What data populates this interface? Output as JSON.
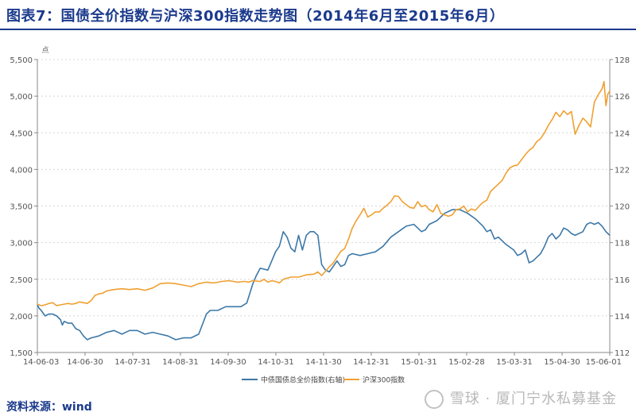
{
  "title": "图表7：国债全价指数与沪深300指数走势图（2014年6月至2015年6月）",
  "source": "资料来源：wind",
  "watermark": "雪球 · 厦门宁水私募基金",
  "chart_data": {
    "type": "line",
    "left_axis": {
      "unit": "点",
      "range": [
        1500,
        5500
      ],
      "ticks": [
        "1,500",
        "2,000",
        "2,500",
        "3,000",
        "3,500",
        "4,000",
        "4,500",
        "5,000",
        "5,500"
      ]
    },
    "right_axis": {
      "range": [
        112,
        128
      ],
      "ticks": [
        "112",
        "114",
        "116",
        "118",
        "120",
        "122",
        "124",
        "126",
        "128"
      ]
    },
    "x_ticks": [
      "14-06-03",
      "14-06-30",
      "14-07-31",
      "14-08-31",
      "14-09-30",
      "14-10-31",
      "14-11-30",
      "14-12-31",
      "15-01-31",
      "15-02-28",
      "15-03-31",
      "15-04-30",
      "15-06-01"
    ],
    "grid": "horizontal-dashed",
    "legend_position": "bottom",
    "colors": {
      "csi300": "#f0a030",
      "bond": "#3c78a8"
    },
    "series": [
      {
        "name": "中债国债总全价指数(右轴)",
        "axis": "right",
        "values": [
          [
            0,
            114.6
          ],
          [
            0.5,
            114.4
          ],
          [
            1,
            114.3
          ],
          [
            2,
            114.0
          ],
          [
            3,
            114.1
          ],
          [
            4,
            114.1
          ],
          [
            5,
            114.0
          ],
          [
            6,
            113.8
          ],
          [
            6.5,
            113.5
          ],
          [
            7,
            113.7
          ],
          [
            8,
            113.6
          ],
          [
            9,
            113.6
          ],
          [
            10,
            113.3
          ],
          [
            11,
            113.2
          ],
          [
            12,
            112.9
          ],
          [
            13,
            112.7
          ],
          [
            14,
            112.8
          ],
          [
            16,
            112.9
          ],
          [
            18,
            113.1
          ],
          [
            20,
            113.2
          ],
          [
            22,
            113.0
          ],
          [
            24,
            113.2
          ],
          [
            26,
            113.2
          ],
          [
            28,
            113.0
          ],
          [
            30,
            113.1
          ],
          [
            32,
            113.0
          ],
          [
            34,
            112.9
          ],
          [
            36,
            112.7
          ],
          [
            38,
            112.8
          ],
          [
            40,
            112.8
          ],
          [
            42,
            113.0
          ],
          [
            44,
            114.1
          ],
          [
            45,
            114.3
          ],
          [
            47,
            114.3
          ],
          [
            49,
            114.5
          ],
          [
            51,
            114.5
          ],
          [
            53,
            114.5
          ],
          [
            54.5,
            114.7
          ],
          [
            56,
            115.7
          ],
          [
            57,
            116.2
          ],
          [
            58,
            116.6
          ],
          [
            60,
            116.5
          ],
          [
            61,
            117.0
          ],
          [
            62,
            117.5
          ],
          [
            63,
            117.8
          ],
          [
            64,
            118.6
          ],
          [
            65,
            118.3
          ],
          [
            66,
            117.7
          ],
          [
            67,
            117.5
          ],
          [
            68,
            118.4
          ],
          [
            69,
            117.6
          ],
          [
            70,
            118.4
          ],
          [
            71,
            118.6
          ],
          [
            72,
            118.6
          ],
          [
            73,
            118.4
          ],
          [
            74,
            116.8
          ],
          [
            75,
            116.5
          ],
          [
            76,
            116.4
          ],
          [
            77,
            116.7
          ],
          [
            78,
            117.0
          ],
          [
            79,
            116.7
          ],
          [
            80,
            116.8
          ],
          [
            81,
            117.3
          ],
          [
            82,
            117.4
          ],
          [
            84,
            117.3
          ],
          [
            86,
            117.4
          ],
          [
            88,
            117.5
          ],
          [
            90,
            117.8
          ],
          [
            92,
            118.3
          ],
          [
            94,
            118.6
          ],
          [
            96,
            118.9
          ],
          [
            98,
            119.0
          ],
          [
            100,
            118.6
          ],
          [
            101,
            118.7
          ],
          [
            102,
            119.0
          ],
          [
            104,
            119.2
          ],
          [
            106,
            119.6
          ],
          [
            108,
            119.8
          ],
          [
            110,
            119.8
          ],
          [
            112,
            119.6
          ],
          [
            114,
            119.3
          ],
          [
            116,
            118.9
          ],
          [
            117,
            118.6
          ],
          [
            118,
            118.7
          ],
          [
            119,
            118.2
          ],
          [
            120,
            118.3
          ],
          [
            122,
            117.9
          ],
          [
            124,
            117.6
          ],
          [
            125,
            117.3
          ],
          [
            126,
            117.4
          ],
          [
            127,
            117.6
          ],
          [
            128,
            116.9
          ],
          [
            129,
            117.0
          ],
          [
            130,
            117.2
          ],
          [
            131,
            117.4
          ],
          [
            132,
            117.8
          ],
          [
            133,
            118.3
          ],
          [
            134,
            118.5
          ],
          [
            135,
            118.2
          ],
          [
            136,
            118.4
          ],
          [
            137,
            118.8
          ],
          [
            138,
            118.7
          ],
          [
            139,
            118.5
          ],
          [
            140,
            118.4
          ],
          [
            142,
            118.6
          ],
          [
            143,
            119.0
          ],
          [
            144,
            119.1
          ],
          [
            145,
            119.0
          ],
          [
            146,
            119.1
          ],
          [
            147,
            118.9
          ],
          [
            148,
            118.6
          ],
          [
            149,
            118.4
          ]
        ]
      },
      {
        "name": "沪深300指数",
        "axis": "left",
        "values": [
          [
            0,
            2160
          ],
          [
            1,
            2140
          ],
          [
            2,
            2150
          ],
          [
            3,
            2170
          ],
          [
            4,
            2180
          ],
          [
            5,
            2140
          ],
          [
            6,
            2150
          ],
          [
            7,
            2160
          ],
          [
            8,
            2170
          ],
          [
            9,
            2160
          ],
          [
            10,
            2170
          ],
          [
            11,
            2190
          ],
          [
            12,
            2180
          ],
          [
            13,
            2170
          ],
          [
            14,
            2210
          ],
          [
            15,
            2280
          ],
          [
            16,
            2300
          ],
          [
            17,
            2310
          ],
          [
            18,
            2340
          ],
          [
            20,
            2360
          ],
          [
            22,
            2370
          ],
          [
            24,
            2360
          ],
          [
            26,
            2370
          ],
          [
            28,
            2350
          ],
          [
            30,
            2380
          ],
          [
            32,
            2440
          ],
          [
            34,
            2450
          ],
          [
            36,
            2440
          ],
          [
            38,
            2420
          ],
          [
            40,
            2400
          ],
          [
            42,
            2440
          ],
          [
            44,
            2460
          ],
          [
            46,
            2450
          ],
          [
            48,
            2470
          ],
          [
            50,
            2480
          ],
          [
            52,
            2460
          ],
          [
            54,
            2470
          ],
          [
            55,
            2460
          ],
          [
            56,
            2480
          ],
          [
            58,
            2470
          ],
          [
            59,
            2500
          ],
          [
            60,
            2460
          ],
          [
            61,
            2480
          ],
          [
            62,
            2470
          ],
          [
            63,
            2450
          ],
          [
            64,
            2500
          ],
          [
            66,
            2530
          ],
          [
            68,
            2530
          ],
          [
            70,
            2560
          ],
          [
            72,
            2570
          ],
          [
            73,
            2600
          ],
          [
            74,
            2550
          ],
          [
            75,
            2610
          ],
          [
            76,
            2670
          ],
          [
            77,
            2720
          ],
          [
            78,
            2800
          ],
          [
            79,
            2880
          ],
          [
            80,
            2920
          ],
          [
            81,
            3050
          ],
          [
            82,
            3200
          ],
          [
            83,
            3300
          ],
          [
            84,
            3380
          ],
          [
            85,
            3470
          ],
          [
            86,
            3350
          ],
          [
            87,
            3380
          ],
          [
            88,
            3420
          ],
          [
            89,
            3420
          ],
          [
            90,
            3470
          ],
          [
            91,
            3510
          ],
          [
            92,
            3560
          ],
          [
            93,
            3640
          ],
          [
            94,
            3630
          ],
          [
            95,
            3560
          ],
          [
            96,
            3520
          ],
          [
            97,
            3480
          ],
          [
            98,
            3470
          ],
          [
            99,
            3560
          ],
          [
            100,
            3490
          ],
          [
            101,
            3510
          ],
          [
            102,
            3450
          ],
          [
            103,
            3420
          ],
          [
            104,
            3520
          ],
          [
            105,
            3400
          ],
          [
            106,
            3380
          ],
          [
            107,
            3360
          ],
          [
            108,
            3380
          ],
          [
            109,
            3450
          ],
          [
            110,
            3460
          ],
          [
            111,
            3500
          ],
          [
            112,
            3420
          ],
          [
            113,
            3460
          ],
          [
            114,
            3440
          ],
          [
            115,
            3500
          ],
          [
            116,
            3550
          ],
          [
            117,
            3580
          ],
          [
            118,
            3700
          ],
          [
            119,
            3750
          ],
          [
            120,
            3800
          ],
          [
            121,
            3850
          ],
          [
            122,
            3950
          ],
          [
            123,
            4020
          ],
          [
            124,
            4050
          ],
          [
            125,
            4060
          ],
          [
            126,
            4130
          ],
          [
            127,
            4200
          ],
          [
            128,
            4260
          ],
          [
            129,
            4300
          ],
          [
            130,
            4380
          ],
          [
            131,
            4420
          ],
          [
            132,
            4500
          ],
          [
            133,
            4600
          ],
          [
            134,
            4680
          ],
          [
            135,
            4780
          ],
          [
            136,
            4720
          ],
          [
            137,
            4800
          ],
          [
            138,
            4750
          ],
          [
            139,
            4790
          ],
          [
            140,
            4480
          ],
          [
            141,
            4600
          ],
          [
            142,
            4700
          ],
          [
            143,
            4650
          ],
          [
            144,
            4580
          ],
          [
            145,
            4920
          ],
          [
            146,
            5020
          ],
          [
            147,
            5100
          ],
          [
            147.5,
            5200
          ],
          [
            148,
            4870
          ],
          [
            148.5,
            5030
          ],
          [
            149,
            5070
          ]
        ]
      }
    ]
  }
}
